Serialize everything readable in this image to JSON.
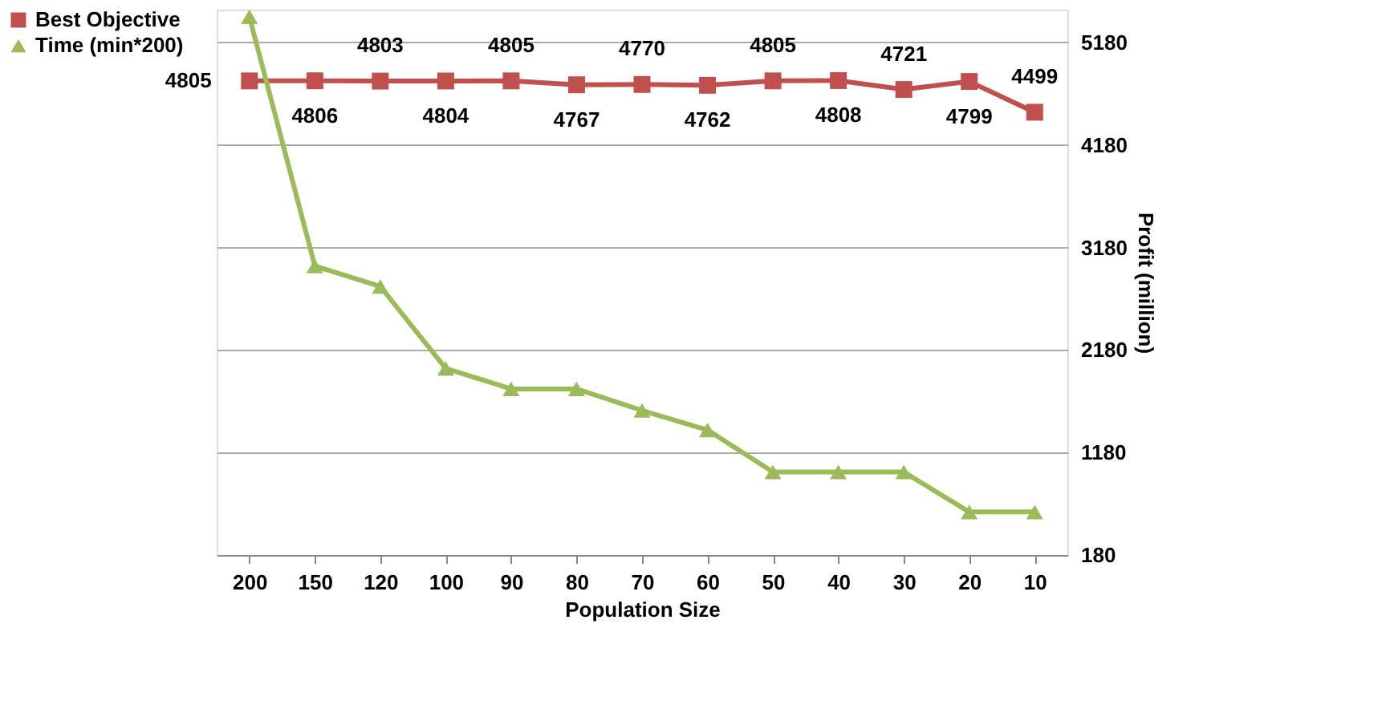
{
  "chart_data": {
    "type": "line",
    "xlabel": "Population Size",
    "ylabel": "Profit (million)",
    "categories": [
      "200",
      "150",
      "120",
      "100",
      "90",
      "80",
      "70",
      "60",
      "50",
      "40",
      "30",
      "20",
      "10"
    ],
    "series": [
      {
        "name": "Best Objective",
        "color": "#c0504d",
        "marker": "square",
        "data_labels": true,
        "values": [
          4805,
          4806,
          4803,
          4804,
          4805,
          4767,
          4770,
          4762,
          4805,
          4808,
          4721,
          4799,
          4499
        ]
      },
      {
        "name": "Time (min*200)",
        "color": "#9bbb59",
        "marker": "triangle",
        "values": [
          5430,
          3000,
          2800,
          2000,
          1800,
          1800,
          1590,
          1400,
          990,
          990,
          990,
          600,
          600
        ]
      }
    ],
    "ylim": [
      180,
      5500
    ],
    "yticks": [
      180,
      1180,
      2180,
      3180,
      4180,
      5180
    ],
    "grid": "y",
    "legend": "left",
    "line_style": "solid"
  }
}
